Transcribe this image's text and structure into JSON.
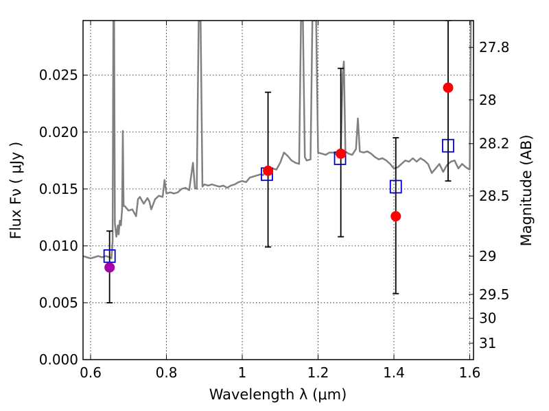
{
  "chart_data": {
    "type": "scatter",
    "xlabel": "Wavelength  λ (μm)",
    "ylabel": "Flux  Fν  ( μJy )",
    "ylabel_right": "Magnitude (AB)",
    "xlim": [
      0.58,
      1.61
    ],
    "ylim": [
      0.0,
      0.0298
    ],
    "grid": true,
    "x_ticks": [
      0.6,
      0.8,
      1.0,
      1.2,
      1.4,
      1.6
    ],
    "x_tick_labels": [
      "0.6",
      "0.8",
      "1",
      "1.2",
      "1.4",
      "1.6"
    ],
    "y_ticks": [
      0.0,
      0.005,
      0.01,
      0.015,
      0.02,
      0.025
    ],
    "y_tick_labels": [
      "0.000",
      "0.005",
      "0.010",
      "0.015",
      "0.020",
      "0.025"
    ],
    "right_ticks": [
      {
        "label": "27.8",
        "flux": 0.02744
      },
      {
        "label": "28",
        "flux": 0.02283
      },
      {
        "label": "28.2",
        "flux": 0.01898
      },
      {
        "label": "28.5",
        "flux": 0.0144
      },
      {
        "label": "29",
        "flux": 0.00909
      },
      {
        "label": "29.5",
        "flux": 0.00573
      },
      {
        "label": "30",
        "flux": 0.00363
      },
      {
        "label": "31",
        "flux": 0.00144
      }
    ],
    "colors": {
      "template": "#808080",
      "model": "#0000cc",
      "observed": "#ff0000",
      "observed_first": "#aa00aa",
      "errorbar": "#000000"
    },
    "series": [
      {
        "kind": "model_template_spectrum",
        "points": [
          [
            0.58,
            0.0091
          ],
          [
            0.59,
            0.009
          ],
          [
            0.6,
            0.0089
          ],
          [
            0.61,
            0.009
          ],
          [
            0.62,
            0.0091
          ],
          [
            0.63,
            0.009
          ],
          [
            0.64,
            0.0091
          ],
          [
            0.65,
            0.009
          ],
          [
            0.655,
            0.0089
          ],
          [
            0.658,
            0.0104
          ],
          [
            0.66,
            0.0298
          ],
          [
            0.662,
            0.0298
          ],
          [
            0.664,
            0.012
          ],
          [
            0.668,
            0.0108
          ],
          [
            0.672,
            0.0118
          ],
          [
            0.674,
            0.011
          ],
          [
            0.677,
            0.0122
          ],
          [
            0.68,
            0.0118
          ],
          [
            0.683,
            0.0132
          ],
          [
            0.685,
            0.0201
          ],
          [
            0.687,
            0.0135
          ],
          [
            0.69,
            0.0135
          ],
          [
            0.7,
            0.0131
          ],
          [
            0.71,
            0.0132
          ],
          [
            0.72,
            0.0126
          ],
          [
            0.725,
            0.0141
          ],
          [
            0.73,
            0.0143
          ],
          [
            0.74,
            0.0137
          ],
          [
            0.75,
            0.0142
          ],
          [
            0.755,
            0.0139
          ],
          [
            0.76,
            0.0132
          ],
          [
            0.77,
            0.0141
          ],
          [
            0.78,
            0.0144
          ],
          [
            0.79,
            0.0143
          ],
          [
            0.795,
            0.0158
          ],
          [
            0.8,
            0.0146
          ],
          [
            0.81,
            0.0147
          ],
          [
            0.82,
            0.0146
          ],
          [
            0.83,
            0.0147
          ],
          [
            0.84,
            0.015
          ],
          [
            0.85,
            0.0151
          ],
          [
            0.86,
            0.0149
          ],
          [
            0.87,
            0.0173
          ],
          [
            0.875,
            0.0151
          ],
          [
            0.88,
            0.015
          ],
          [
            0.885,
            0.0298
          ],
          [
            0.89,
            0.0298
          ],
          [
            0.895,
            0.0152
          ],
          [
            0.9,
            0.0154
          ],
          [
            0.91,
            0.0153
          ],
          [
            0.92,
            0.0154
          ],
          [
            0.93,
            0.0153
          ],
          [
            0.94,
            0.0152
          ],
          [
            0.95,
            0.0153
          ],
          [
            0.96,
            0.0151
          ],
          [
            0.97,
            0.0153
          ],
          [
            0.98,
            0.0154
          ],
          [
            0.99,
            0.0156
          ],
          [
            1.0,
            0.0157
          ],
          [
            1.01,
            0.0156
          ],
          [
            1.02,
            0.016
          ],
          [
            1.03,
            0.0161
          ],
          [
            1.04,
            0.0162
          ],
          [
            1.05,
            0.0163
          ],
          [
            1.055,
            0.0162
          ],
          [
            1.06,
            0.0165
          ],
          [
            1.07,
            0.0166
          ],
          [
            1.08,
            0.0168
          ],
          [
            1.09,
            0.0167
          ],
          [
            1.1,
            0.0173
          ],
          [
            1.11,
            0.0182
          ],
          [
            1.12,
            0.0179
          ],
          [
            1.13,
            0.0175
          ],
          [
            1.14,
            0.0173
          ],
          [
            1.15,
            0.0172
          ],
          [
            1.155,
            0.0298
          ],
          [
            1.16,
            0.0298
          ],
          [
            1.165,
            0.0178
          ],
          [
            1.17,
            0.0175
          ],
          [
            1.18,
            0.0176
          ],
          [
            1.185,
            0.0298
          ],
          [
            1.19,
            0.0298
          ],
          [
            1.195,
            0.0298
          ],
          [
            1.2,
            0.0182
          ],
          [
            1.21,
            0.0181
          ],
          [
            1.22,
            0.018
          ],
          [
            1.23,
            0.0182
          ],
          [
            1.24,
            0.0182
          ],
          [
            1.25,
            0.018
          ],
          [
            1.26,
            0.0183
          ],
          [
            1.265,
            0.0251
          ],
          [
            1.268,
            0.0262
          ],
          [
            1.272,
            0.0183
          ],
          [
            1.28,
            0.0181
          ],
          [
            1.29,
            0.018
          ],
          [
            1.3,
            0.0185
          ],
          [
            1.305,
            0.0212
          ],
          [
            1.31,
            0.0183
          ],
          [
            1.32,
            0.0182
          ],
          [
            1.33,
            0.0183
          ],
          [
            1.34,
            0.0181
          ],
          [
            1.35,
            0.0178
          ],
          [
            1.36,
            0.0176
          ],
          [
            1.37,
            0.0177
          ],
          [
            1.38,
            0.0175
          ],
          [
            1.39,
            0.0172
          ],
          [
            1.4,
            0.0168
          ],
          [
            1.41,
            0.0169
          ],
          [
            1.42,
            0.0172
          ],
          [
            1.43,
            0.0175
          ],
          [
            1.44,
            0.0174
          ],
          [
            1.45,
            0.0177
          ],
          [
            1.46,
            0.0174
          ],
          [
            1.47,
            0.0177
          ],
          [
            1.48,
            0.0175
          ],
          [
            1.49,
            0.0172
          ],
          [
            1.5,
            0.0164
          ],
          [
            1.51,
            0.0168
          ],
          [
            1.52,
            0.0172
          ],
          [
            1.53,
            0.0165
          ],
          [
            1.54,
            0.0171
          ],
          [
            1.55,
            0.0174
          ],
          [
            1.56,
            0.0175
          ],
          [
            1.57,
            0.0168
          ],
          [
            1.58,
            0.0172
          ],
          [
            1.59,
            0.0169
          ],
          [
            1.6,
            0.0167
          ],
          [
            1.603,
            0.0298
          ],
          [
            1.61,
            0.0298
          ]
        ]
      },
      {
        "kind": "model_photometry",
        "marker": "open-square",
        "points": [
          [
            0.65,
            0.0091
          ],
          [
            1.065,
            0.0163
          ],
          [
            1.258,
            0.0177
          ],
          [
            1.405,
            0.0152
          ],
          [
            1.543,
            0.0188
          ]
        ]
      },
      {
        "kind": "observed_photometry",
        "marker": "filled-circle",
        "points": [
          {
            "x": 0.65,
            "y": 0.0081,
            "err_low": 0.005,
            "err_high": 0.0113
          },
          {
            "x": 1.068,
            "y": 0.0166,
            "err_low": 0.0099,
            "err_high": 0.0235
          },
          {
            "x": 1.26,
            "y": 0.0181,
            "err_low": 0.0108,
            "err_high": 0.0256
          },
          {
            "x": 1.405,
            "y": 0.0126,
            "err_low": 0.0058,
            "err_high": 0.0195
          },
          {
            "x": 1.543,
            "y": 0.0239,
            "err_low": 0.0157,
            "err_high": 0.0298
          }
        ]
      }
    ]
  }
}
